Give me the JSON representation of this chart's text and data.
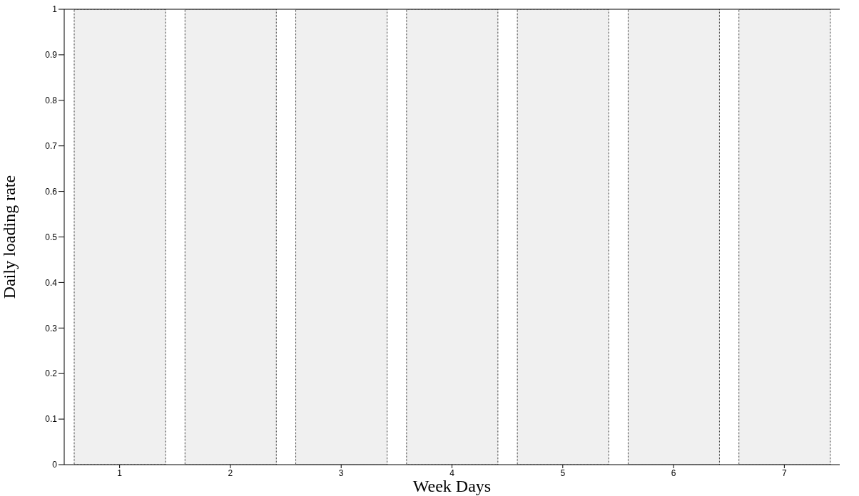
{
  "chart_data": {
    "type": "bar",
    "xlabel": "Week Days",
    "ylabel": "Daily loading rate",
    "categories": [
      "1",
      "2",
      "3",
      "4",
      "5",
      "6",
      "7"
    ],
    "values": [
      1,
      1,
      1,
      1,
      1,
      1,
      1
    ],
    "color": "#f0f0f0",
    "ylim": [
      0,
      1
    ],
    "yticks": [
      0,
      0.1,
      0.2,
      0.3,
      0.4,
      0.5,
      0.6,
      0.7,
      0.8,
      0.9,
      1
    ],
    "grid": false,
    "legend": false
  }
}
